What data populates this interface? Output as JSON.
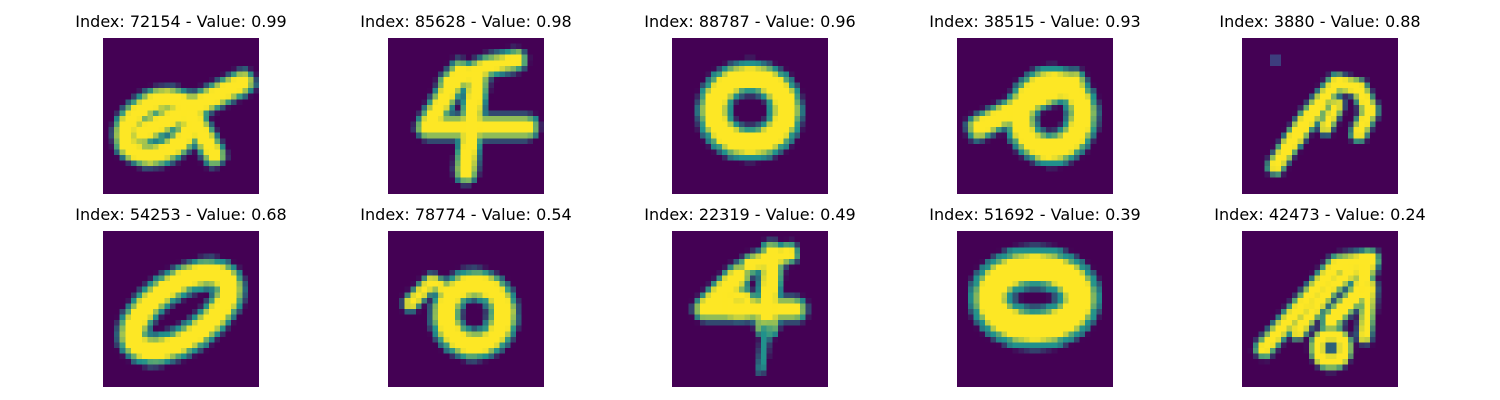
{
  "colormap": {
    "low": "#440154",
    "mid": "#21918c",
    "high": "#fde725"
  },
  "panels": [
    {
      "title": "Index: 72154 - Value: 0.99",
      "index": 72154,
      "value": 0.99,
      "glyph": "loop-a"
    },
    {
      "title": "Index: 85628 - Value: 0.98",
      "index": 85628,
      "value": 0.98,
      "glyph": "four"
    },
    {
      "title": "Index: 88787 - Value: 0.96",
      "index": 88787,
      "value": 0.96,
      "glyph": "zero"
    },
    {
      "title": "Index: 38515 - Value: 0.93",
      "index": 38515,
      "value": 0.93,
      "glyph": "loop-left"
    },
    {
      "title": "Index: 3880 - Value: 0.88",
      "index": 3880,
      "value": 0.88,
      "glyph": "hook"
    },
    {
      "title": "Index: 54253 - Value: 0.68",
      "index": 54253,
      "value": 0.68,
      "glyph": "slant-zero"
    },
    {
      "title": "Index: 78774 - Value: 0.54",
      "index": 78774,
      "value": 0.54,
      "glyph": "curl-d"
    },
    {
      "title": "Index: 22319 - Value: 0.49",
      "index": 22319,
      "value": 0.49,
      "glyph": "four-tail"
    },
    {
      "title": "Index: 51692 - Value: 0.39",
      "index": 51692,
      "value": 0.39,
      "glyph": "blob-zero"
    },
    {
      "title": "Index: 42473 - Value: 0.24",
      "index": 42473,
      "value": 0.24,
      "glyph": "double-a"
    }
  ]
}
